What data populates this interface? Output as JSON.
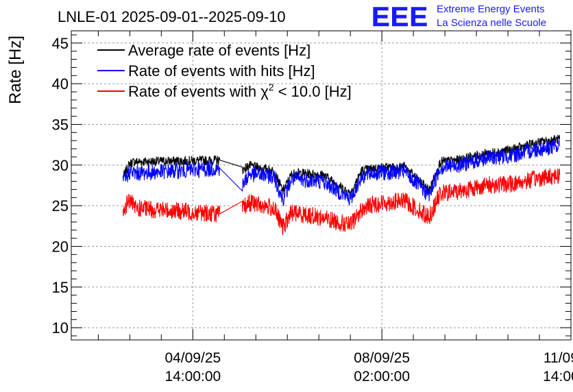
{
  "chart_data": {
    "type": "line",
    "title": "LNLE-01 2025-09-01--2025-09-10",
    "ylabel": "Rate [Hz]",
    "xlabel": "",
    "ylim": [
      8.5,
      46.5
    ],
    "yticks": [
      10,
      15,
      20,
      25,
      30,
      35,
      40,
      45
    ],
    "grid": true,
    "legend_position": "top-left",
    "xlim": [
      "2025-09-02T08:00:00",
      "2025-09-11T14:00:00"
    ],
    "xticks": [
      {
        "time": "2025-09-04T14:00:00",
        "date": "04/09/25",
        "clock": "14:00:00"
      },
      {
        "time": "2025-09-08T02:00:00",
        "date": "08/09/25",
        "clock": "02:00:00"
      },
      {
        "time": "2025-09-11T14:00:00",
        "date": "11/09/25",
        "clock": "14:00:00"
      }
    ],
    "series": [
      {
        "name": "Average rate of events [Hz]",
        "color": "#000000",
        "noise": 0.6,
        "x": [
          "2025-09-03T07:00:00",
          "2025-09-03T10:00:00",
          "2025-09-03T12:00:00",
          "2025-09-05T02:00:00",
          "2025-09-05T12:00:00",
          "2025-09-05T15:00:00",
          "2025-09-06T02:00:00",
          "2025-09-06T06:00:00",
          "2025-09-06T10:00:00",
          "2025-09-06T14:00:00",
          "2025-09-07T00:00:00",
          "2025-09-07T12:00:00",
          "2025-09-07T17:00:00",
          "2025-09-07T22:00:00",
          "2025-09-08T12:00:00",
          "2025-09-08T23:00:00",
          "2025-09-09T04:00:00",
          "2025-09-09T12:00:00",
          "2025-09-10T00:00:00",
          "2025-09-10T12:00:00",
          "2025-09-11T00:00:00",
          "2025-09-11T09:00:00"
        ],
        "y": [
          28.5,
          30.2,
          30.4,
          30.6,
          29.4,
          29.9,
          29.3,
          26.8,
          28.9,
          29.0,
          28.8,
          26.5,
          29.3,
          29.6,
          29.8,
          26.9,
          30.4,
          30.6,
          31.4,
          31.9,
          32.8,
          33.2
        ]
      },
      {
        "name": "Rate of events with hits [Hz]",
        "color": "#0000ff",
        "noise": 1.0,
        "x": [
          "2025-09-03T07:00:00",
          "2025-09-03T10:00:00",
          "2025-09-03T12:00:00",
          "2025-09-05T02:00:00",
          "2025-09-05T12:00:00",
          "2025-09-05T15:00:00",
          "2025-09-06T02:00:00",
          "2025-09-06T06:00:00",
          "2025-09-06T10:00:00",
          "2025-09-06T14:00:00",
          "2025-09-07T00:00:00",
          "2025-09-07T12:00:00",
          "2025-09-07T17:00:00",
          "2025-09-07T22:00:00",
          "2025-09-08T12:00:00",
          "2025-09-08T23:00:00",
          "2025-09-09T04:00:00",
          "2025-09-09T12:00:00",
          "2025-09-10T00:00:00",
          "2025-09-10T12:00:00",
          "2025-09-11T00:00:00",
          "2025-09-11T09:00:00"
        ],
        "y": [
          27.8,
          29.2,
          29.0,
          29.6,
          27.4,
          28.9,
          28.6,
          25.8,
          28.3,
          28.2,
          28.0,
          25.8,
          28.6,
          29.0,
          29.2,
          26.3,
          29.7,
          30.0,
          30.8,
          31.2,
          32.0,
          32.3
        ]
      },
      {
        "name": "Rate of events with χ² < 10.0 [Hz]",
        "color": "#ff0000",
        "noise": 1.1,
        "x": [
          "2025-09-03T07:00:00",
          "2025-09-03T10:00:00",
          "2025-09-03T12:00:00",
          "2025-09-05T02:00:00",
          "2025-09-05T12:00:00",
          "2025-09-05T15:00:00",
          "2025-09-06T02:00:00",
          "2025-09-06T06:00:00",
          "2025-09-06T10:00:00",
          "2025-09-06T14:00:00",
          "2025-09-07T00:00:00",
          "2025-09-07T12:00:00",
          "2025-09-07T17:00:00",
          "2025-09-07T22:00:00",
          "2025-09-08T12:00:00",
          "2025-09-08T23:00:00",
          "2025-09-09T04:00:00",
          "2025-09-09T12:00:00",
          "2025-09-10T00:00:00",
          "2025-09-10T12:00:00",
          "2025-09-11T00:00:00",
          "2025-09-11T09:00:00"
        ],
        "y": [
          24.4,
          25.8,
          24.7,
          24.0,
          24.6,
          25.4,
          24.7,
          22.3,
          24.2,
          24.0,
          23.5,
          22.6,
          24.5,
          25.2,
          25.6,
          23.6,
          26.5,
          26.8,
          27.5,
          27.7,
          28.4,
          28.8
        ]
      }
    ]
  },
  "legend_chi": {
    "prefix": "Rate of events with ",
    "chi": "χ",
    "sup": "2",
    "suffix": " < 10.0 [Hz]"
  },
  "logo": {
    "mark": "EEE",
    "line1": "Extreme Energy Events",
    "line2": "La Scienza nelle Scuole",
    "color": "#1a1aff"
  }
}
